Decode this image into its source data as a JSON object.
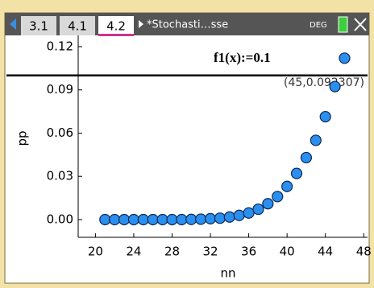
{
  "tabs": [
    "3.1",
    "4.1",
    "4.2"
  ],
  "active_tab": 2,
  "document_title": "*Stochasti…sse",
  "mode": "DEG",
  "chart_data": {
    "type": "scatter",
    "xlabel": "nn",
    "ylabel": "pp",
    "x": [
      21,
      22,
      23,
      24,
      25,
      26,
      27,
      28,
      29,
      30,
      31,
      32,
      33,
      34,
      35,
      36,
      37,
      38,
      39,
      40,
      41,
      42,
      43,
      44,
      45,
      46
    ],
    "values": [
      0,
      0,
      0,
      0,
      0,
      0,
      0,
      0,
      0,
      0.0001,
      0.0003,
      0.0006,
      0.001,
      0.0018,
      0.0029,
      0.0046,
      0.0072,
      0.011,
      0.016,
      0.023,
      0.032,
      0.043,
      0.055,
      0.0714,
      0.092307,
      0.112
    ],
    "color": "#2b8fef",
    "xlim": [
      18.2,
      48.4
    ],
    "ylim": [
      -0.0123,
      0.1278
    ],
    "xticks": [
      20,
      24,
      28,
      32,
      36,
      40,
      44,
      48
    ],
    "yticks": [
      {
        "value": 0,
        "label": "0.00"
      },
      0.03,
      0.06,
      0.09,
      0.12
    ],
    "function": {
      "label": "f1(x):=0.1",
      "value": 0.1
    },
    "point_label": "(45,0.092307)"
  }
}
